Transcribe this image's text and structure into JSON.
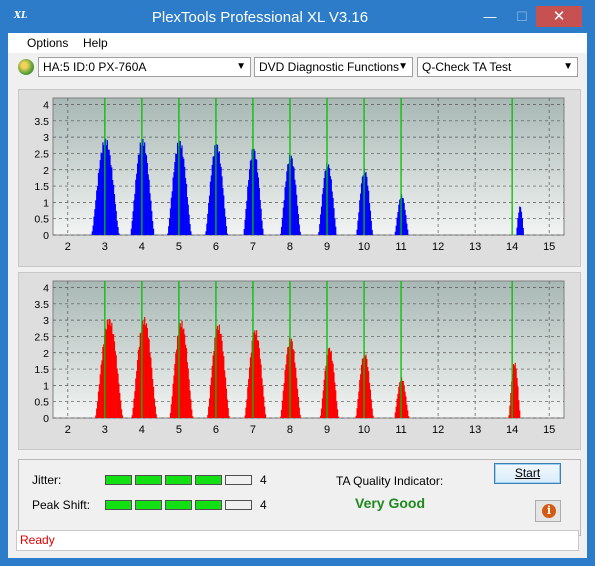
{
  "window": {
    "title": "PlexTools Professional XL V3.16",
    "app_icon_text": "XL",
    "minimize_glyph": "—",
    "maximize_glyph": "☐",
    "close_glyph": "✕"
  },
  "menu": {
    "items": [
      "Options",
      "Help"
    ]
  },
  "toolbar": {
    "drive": "HA:5 ID:0  PX-760A",
    "function": "DVD Diagnostic Functions",
    "test": "Q-Check TA Test"
  },
  "colors": {
    "top_bars": "#0000ff",
    "bottom_bars": "#ff0000",
    "grid_green": "#00c000",
    "plot_bg_top": "#a8b8b4",
    "plot_bg_bottom": "#f2f4f3"
  },
  "chart_data": [
    {
      "type": "bar",
      "series_color": "#0000ff",
      "x_ticks": [
        "2",
        "3",
        "4",
        "5",
        "6",
        "7",
        "8",
        "9",
        "10",
        "11",
        "12",
        "13",
        "14",
        "15"
      ],
      "y_ticks": [
        "0",
        "0.5",
        "1",
        "1.5",
        "2",
        "2.5",
        "3",
        "3.5",
        "4"
      ],
      "xlim": [
        1.6,
        15.4
      ],
      "ylim": [
        0,
        4.2
      ],
      "green_lines": [
        3,
        4,
        5,
        6,
        7,
        8,
        9,
        10,
        11,
        14
      ],
      "peaks": [
        {
          "x": 3,
          "height": 3.0,
          "width": 0.75
        },
        {
          "x": 4,
          "height": 3.0,
          "width": 0.65
        },
        {
          "x": 5,
          "height": 2.95,
          "width": 0.65
        },
        {
          "x": 6,
          "height": 2.85,
          "width": 0.6
        },
        {
          "x": 7,
          "height": 2.7,
          "width": 0.55
        },
        {
          "x": 8,
          "height": 2.5,
          "width": 0.55
        },
        {
          "x": 9,
          "height": 2.25,
          "width": 0.5
        },
        {
          "x": 10,
          "height": 2.05,
          "width": 0.45
        },
        {
          "x": 11,
          "height": 1.25,
          "width": 0.38
        },
        {
          "x": 14.2,
          "height": 0.9,
          "width": 0.22
        }
      ]
    },
    {
      "type": "bar",
      "series_color": "#ff0000",
      "x_ticks": [
        "2",
        "3",
        "4",
        "5",
        "6",
        "7",
        "8",
        "9",
        "10",
        "11",
        "12",
        "13",
        "14",
        "15"
      ],
      "y_ticks": [
        "0",
        "0.5",
        "1",
        "1.5",
        "2",
        "2.5",
        "3",
        "3.5",
        "4"
      ],
      "xlim": [
        1.6,
        15.4
      ],
      "ylim": [
        0,
        4.2
      ],
      "green_lines": [
        3,
        4,
        5,
        6,
        7,
        8,
        9,
        10,
        11,
        14
      ],
      "peaks": [
        {
          "x": 3.1,
          "height": 3.1,
          "width": 0.75
        },
        {
          "x": 4.05,
          "height": 3.1,
          "width": 0.68
        },
        {
          "x": 5.05,
          "height": 3.0,
          "width": 0.63
        },
        {
          "x": 6.05,
          "height": 2.9,
          "width": 0.6
        },
        {
          "x": 7.05,
          "height": 2.75,
          "width": 0.58
        },
        {
          "x": 8.0,
          "height": 2.5,
          "width": 0.55
        },
        {
          "x": 9.05,
          "height": 2.2,
          "width": 0.5
        },
        {
          "x": 10.0,
          "height": 2.05,
          "width": 0.48
        },
        {
          "x": 11.0,
          "height": 1.25,
          "width": 0.4
        },
        {
          "x": 14.05,
          "height": 1.75,
          "width": 0.32
        }
      ]
    }
  ],
  "metrics": {
    "jitter_label": "Jitter:",
    "jitter_value": "4",
    "jitter_level": 4,
    "peak_shift_label": "Peak Shift:",
    "peak_shift_value": "4",
    "peak_shift_level": 4,
    "segments_total": 5,
    "ta_quality_label": "TA Quality Indicator:",
    "ta_quality_value": "Very Good"
  },
  "buttons": {
    "start": "Start",
    "info_glyph": "i"
  },
  "status": {
    "text": "Ready"
  }
}
